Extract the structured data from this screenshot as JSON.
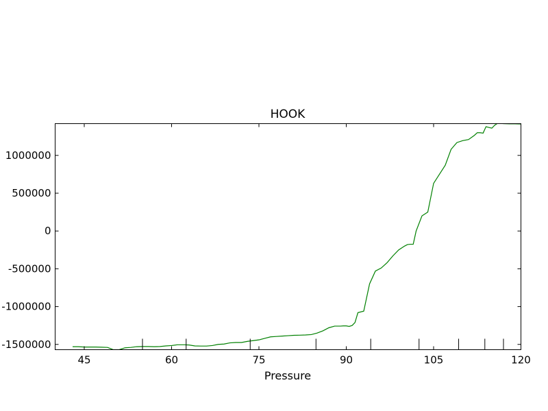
{
  "chart_data": {
    "type": "line",
    "title": "HOOK",
    "xlabel": "Pressure",
    "ylabel": "",
    "xlim": [
      40,
      120
    ],
    "ylim": [
      -1570000,
      1420000
    ],
    "x_ticks": [
      45,
      60,
      75,
      90,
      105,
      120
    ],
    "x_tick_labels": [
      "45",
      "60",
      "75",
      "90",
      "105",
      "120"
    ],
    "y_ticks": [
      1000000,
      500000,
      0,
      -500000,
      -1000000,
      -1500000
    ],
    "y_tick_labels": [
      "1000000",
      "500000",
      "0",
      "-500000",
      "-1000000",
      "-1500000"
    ],
    "rug_x": [
      55,
      62.5,
      73.5,
      84.8,
      94.2,
      102.5,
      109.3,
      113.8,
      117
    ],
    "line_color": "#008000",
    "series": [
      {
        "name": "HOOK",
        "x": [
          43,
          44,
          45,
          46,
          47,
          48,
          49,
          50,
          51,
          52,
          53,
          54,
          55,
          56,
          57,
          58,
          59,
          60,
          61,
          62,
          63,
          64,
          65,
          66,
          67,
          68,
          69,
          70,
          71,
          72,
          73,
          74,
          75,
          76,
          77,
          78,
          79,
          80,
          81,
          82,
          83,
          84,
          85,
          86,
          87,
          88,
          89,
          89.5,
          90,
          90.5,
          91,
          91.5,
          92,
          93,
          94,
          95,
          96,
          97,
          98,
          99,
          100,
          100.5,
          101,
          101.5,
          102,
          103,
          104,
          105,
          106,
          107,
          108,
          109,
          110,
          111,
          112,
          112.5,
          113,
          113.5,
          114,
          114.5,
          115,
          115.5,
          116,
          117,
          118,
          119,
          120
        ],
        "y": [
          -1530000,
          -1530000,
          -1535000,
          -1535000,
          -1535000,
          -1537000,
          -1540000,
          -1570000,
          -1570000,
          -1545000,
          -1540000,
          -1530000,
          -1528000,
          -1528000,
          -1530000,
          -1528000,
          -1520000,
          -1515000,
          -1505000,
          -1505000,
          -1508000,
          -1520000,
          -1522000,
          -1522000,
          -1515000,
          -1500000,
          -1495000,
          -1480000,
          -1475000,
          -1475000,
          -1460000,
          -1450000,
          -1440000,
          -1420000,
          -1400000,
          -1395000,
          -1390000,
          -1385000,
          -1380000,
          -1378000,
          -1375000,
          -1370000,
          -1350000,
          -1320000,
          -1280000,
          -1258000,
          -1258000,
          -1255000,
          -1255000,
          -1262000,
          -1250000,
          -1210000,
          -1080000,
          -1060000,
          -700000,
          -530000,
          -490000,
          -420000,
          -330000,
          -250000,
          -200000,
          -180000,
          -175000,
          -175000,
          0,
          200000,
          250000,
          630000,
          750000,
          870000,
          1080000,
          1170000,
          1195000,
          1210000,
          1265000,
          1300000,
          1300000,
          1295000,
          1380000,
          1370000,
          1360000,
          1400000,
          1425000,
          1420000,
          1418000,
          1418000,
          1415000
        ]
      }
    ]
  }
}
